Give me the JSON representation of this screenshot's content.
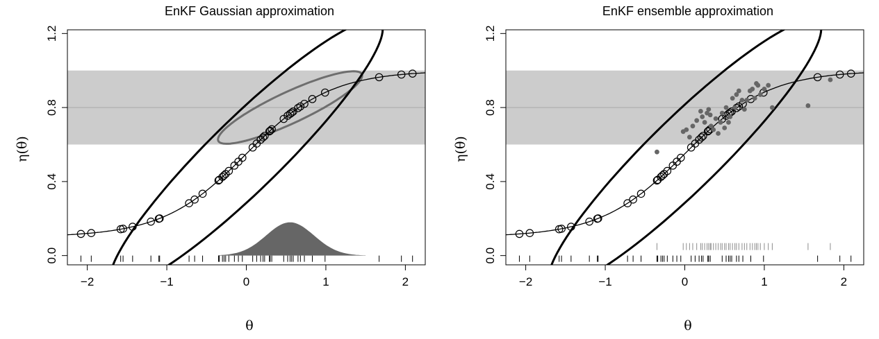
{
  "chart_data": [
    {
      "type": "scatter",
      "title": "EnKF Gaussian approximation",
      "xlabel": "θ",
      "ylabel": "η(θ)",
      "xlim": [
        -2.25,
        2.25
      ],
      "ylim": [
        -0.05,
        1.22
      ],
      "xticks": [
        -2,
        -1,
        0,
        1,
        2
      ],
      "yticks": [
        0.0,
        0.4,
        0.8,
        1.2
      ],
      "xtick_labels": [
        "−2",
        "−1",
        "0",
        "1",
        "2"
      ],
      "ytick_labels": [
        "0.0",
        "0.4",
        "0.8",
        "1.2"
      ],
      "band": {
        "y_low": 0.6,
        "y_high": 1.0,
        "y_mid": 0.8,
        "color": "#cccccc"
      },
      "curve": {
        "function": "eta",
        "color": "#000000"
      },
      "prior_theta": [
        -2.08,
        -1.95,
        -1.58,
        -1.55,
        -1.43,
        -1.2,
        -1.1,
        -1.09,
        -0.72,
        -0.65,
        -0.55,
        -0.35,
        -0.34,
        -0.3,
        -0.28,
        -0.26,
        -0.22,
        -0.15,
        -0.1,
        -0.05,
        0.08,
        0.13,
        0.18,
        0.21,
        0.23,
        0.29,
        0.3,
        0.32,
        0.47,
        0.52,
        0.55,
        0.57,
        0.59,
        0.65,
        0.68,
        0.73,
        0.83,
        0.99,
        1.67,
        1.95,
        2.09
      ],
      "prior_ellipse": {
        "center": [
          0.0,
          0.55
        ],
        "sd_x": 0.7,
        "sd_y": 0.295,
        "corr": 0.93,
        "level": 2.45,
        "color": "#000000"
      },
      "posterior_ellipse": {
        "center": [
          0.55,
          0.8
        ],
        "sd_x": 0.37,
        "sd_y": 0.08,
        "corr": 0.88,
        "level": 2.45,
        "color": "#6e6e6e"
      },
      "posterior_density": {
        "mean": 0.55,
        "sd": 0.3,
        "from": -0.35,
        "to": 1.5,
        "color": "#666666"
      }
    },
    {
      "type": "scatter",
      "title": "EnKF ensemble approximation",
      "xlabel": "θ",
      "ylabel": "η(θ)",
      "xlim": [
        -2.25,
        2.25
      ],
      "ylim": [
        -0.05,
        1.22
      ],
      "xticks": [
        -2,
        -1,
        0,
        1,
        2
      ],
      "yticks": [
        0.0,
        0.4,
        0.8,
        1.2
      ],
      "xtick_labels": [
        "−2",
        "−1",
        "0",
        "1",
        "2"
      ],
      "ytick_labels": [
        "0.0",
        "0.4",
        "0.8",
        "1.2"
      ],
      "band": {
        "y_low": 0.6,
        "y_high": 1.0,
        "y_mid": 0.8,
        "color": "#cccccc"
      },
      "curve": {
        "function": "eta",
        "color": "#000000"
      },
      "prior_theta": [
        -2.08,
        -1.95,
        -1.58,
        -1.55,
        -1.43,
        -1.2,
        -1.1,
        -1.09,
        -0.72,
        -0.65,
        -0.55,
        -0.35,
        -0.34,
        -0.3,
        -0.28,
        -0.26,
        -0.22,
        -0.15,
        -0.1,
        -0.05,
        0.08,
        0.13,
        0.18,
        0.21,
        0.23,
        0.29,
        0.3,
        0.32,
        0.47,
        0.52,
        0.55,
        0.57,
        0.59,
        0.65,
        0.68,
        0.73,
        0.83,
        0.99,
        1.67,
        1.95,
        2.09
      ],
      "prior_ellipse": {
        "center": [
          0.0,
          0.55
        ],
        "sd_x": 0.7,
        "sd_y": 0.295,
        "corr": 0.93,
        "level": 2.45,
        "color": "#000000"
      },
      "posterior_points": {
        "color": "#666666",
        "points": [
          [
            -0.35,
            0.56
          ],
          [
            -0.02,
            0.67
          ],
          [
            0.02,
            0.68
          ],
          [
            0.06,
            0.64
          ],
          [
            0.1,
            0.7
          ],
          [
            0.15,
            0.73
          ],
          [
            0.2,
            0.78
          ],
          [
            0.22,
            0.75
          ],
          [
            0.25,
            0.72
          ],
          [
            0.28,
            0.77
          ],
          [
            0.3,
            0.79
          ],
          [
            0.32,
            0.76
          ],
          [
            0.33,
            0.7
          ],
          [
            0.36,
            0.68
          ],
          [
            0.39,
            0.74
          ],
          [
            0.42,
            0.66
          ],
          [
            0.45,
            0.72
          ],
          [
            0.47,
            0.77
          ],
          [
            0.5,
            0.69
          ],
          [
            0.52,
            0.8
          ],
          [
            0.55,
            0.72
          ],
          [
            0.57,
            0.75
          ],
          [
            0.6,
            0.85
          ],
          [
            0.63,
            0.8
          ],
          [
            0.65,
            0.87
          ],
          [
            0.68,
            0.89
          ],
          [
            0.72,
            0.84
          ],
          [
            0.75,
            0.79
          ],
          [
            0.78,
            0.84
          ],
          [
            0.82,
            0.89
          ],
          [
            0.85,
            0.9
          ],
          [
            0.88,
            0.85
          ],
          [
            0.9,
            0.93
          ],
          [
            0.92,
            0.92
          ],
          [
            0.95,
            0.87
          ],
          [
            1.0,
            0.9
          ],
          [
            1.05,
            0.92
          ],
          [
            1.1,
            0.8
          ],
          [
            1.55,
            0.81
          ],
          [
            1.83,
            0.95
          ]
        ]
      }
    }
  ]
}
